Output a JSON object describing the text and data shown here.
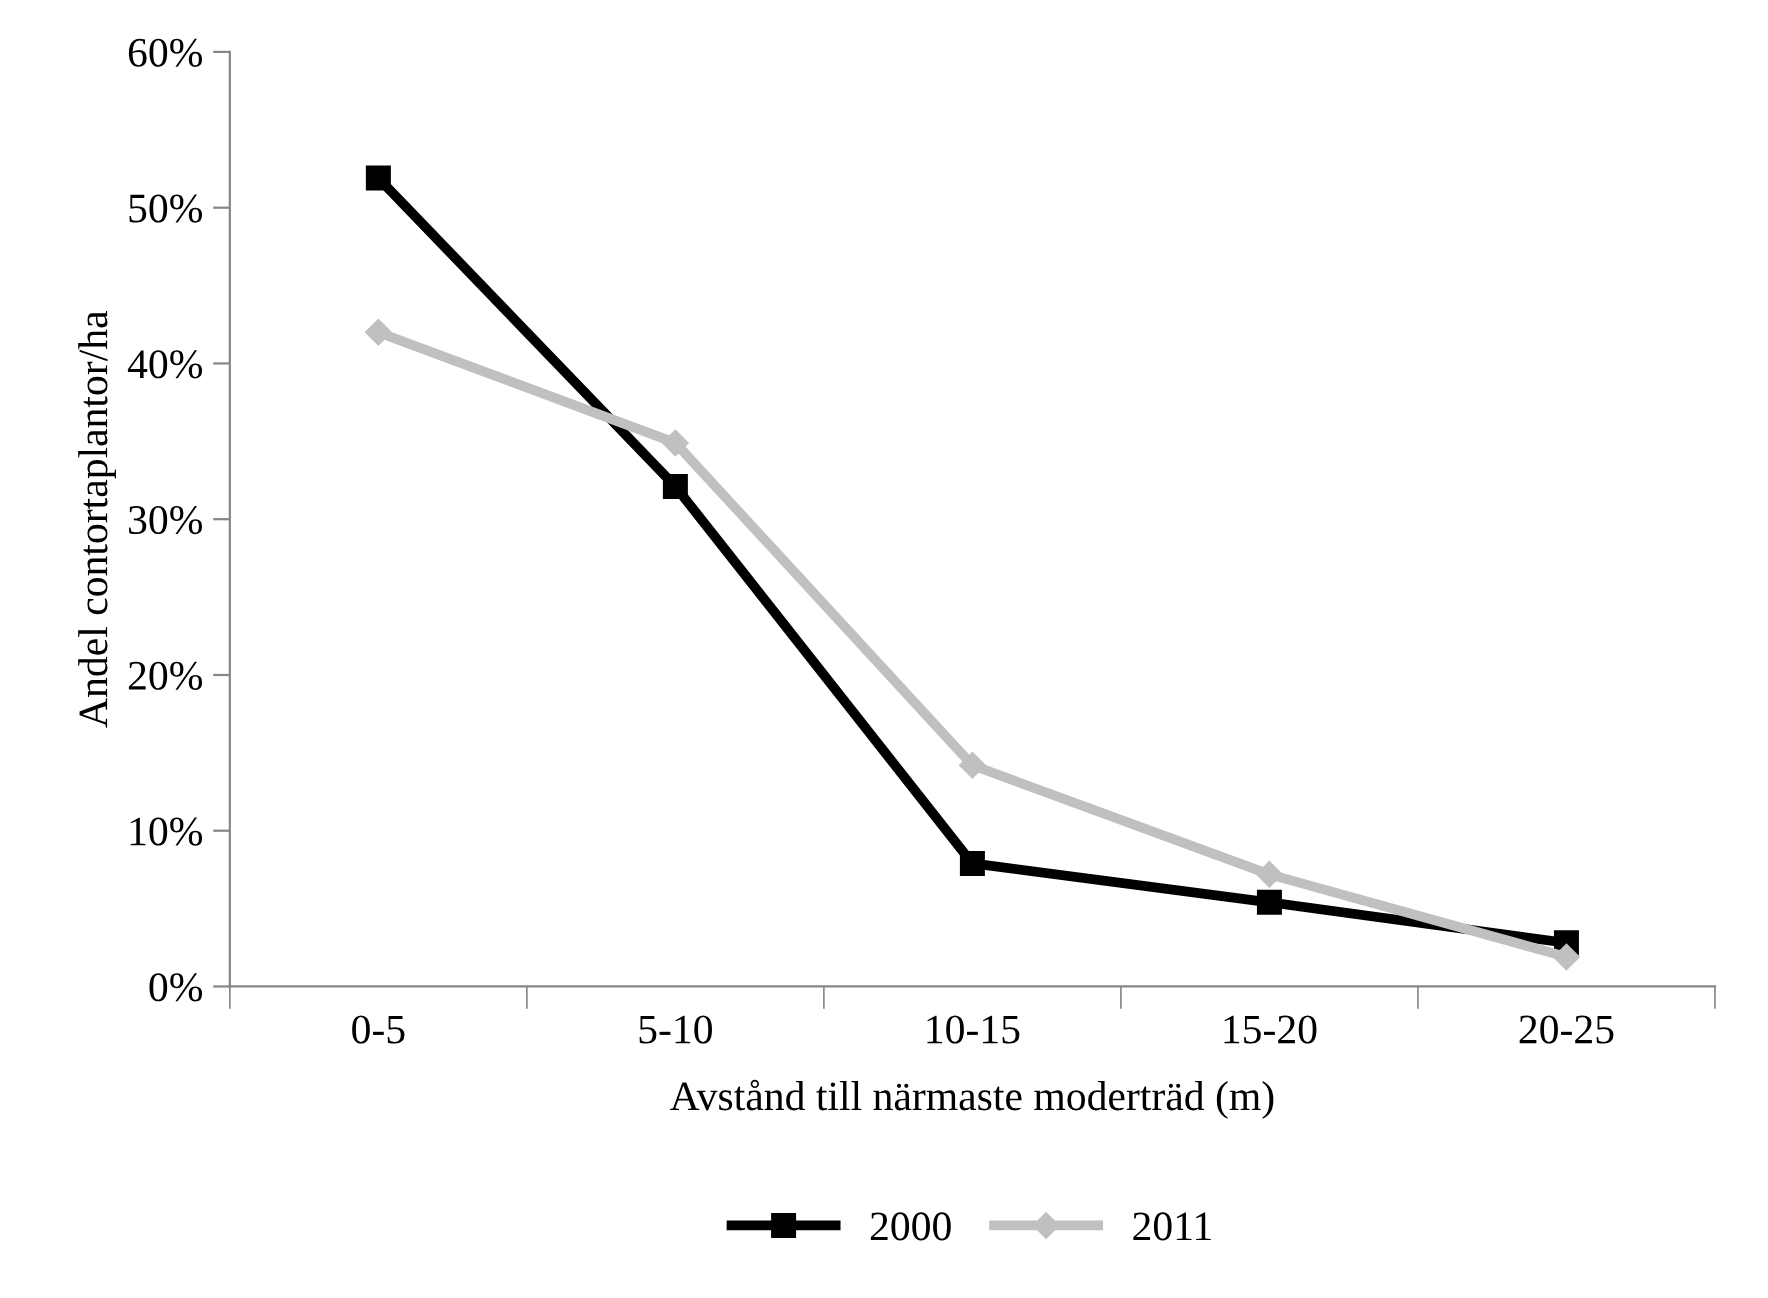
{
  "chart_data": {
    "type": "line",
    "xlabel": "Avstånd till närmaste moderträd (m)",
    "ylabel": "Andel contortaplantor/ha",
    "categories": [
      "0-5",
      "5-10",
      "10-15",
      "15-20",
      "20-25"
    ],
    "series": [
      {
        "name": "2000",
        "color": "#000000",
        "marker": "square",
        "values": [
          51.9,
          32.1,
          7.9,
          5.4,
          2.8
        ]
      },
      {
        "name": "2011",
        "color": "#c0c0c0",
        "marker": "diamond",
        "values": [
          42.0,
          34.9,
          14.2,
          7.2,
          1.9
        ]
      }
    ],
    "ylim": [
      0,
      60
    ],
    "yticks": [
      {
        "value": 0,
        "label": "0%"
      },
      {
        "value": 10,
        "label": "10%"
      },
      {
        "value": 20,
        "label": "20%"
      },
      {
        "value": 30,
        "label": "30%"
      },
      {
        "value": 40,
        "label": "40%"
      },
      {
        "value": 50,
        "label": "50%"
      },
      {
        "value": 60,
        "label": "60%"
      }
    ],
    "grid": false,
    "legend": "bottom",
    "line_style": "solid"
  }
}
